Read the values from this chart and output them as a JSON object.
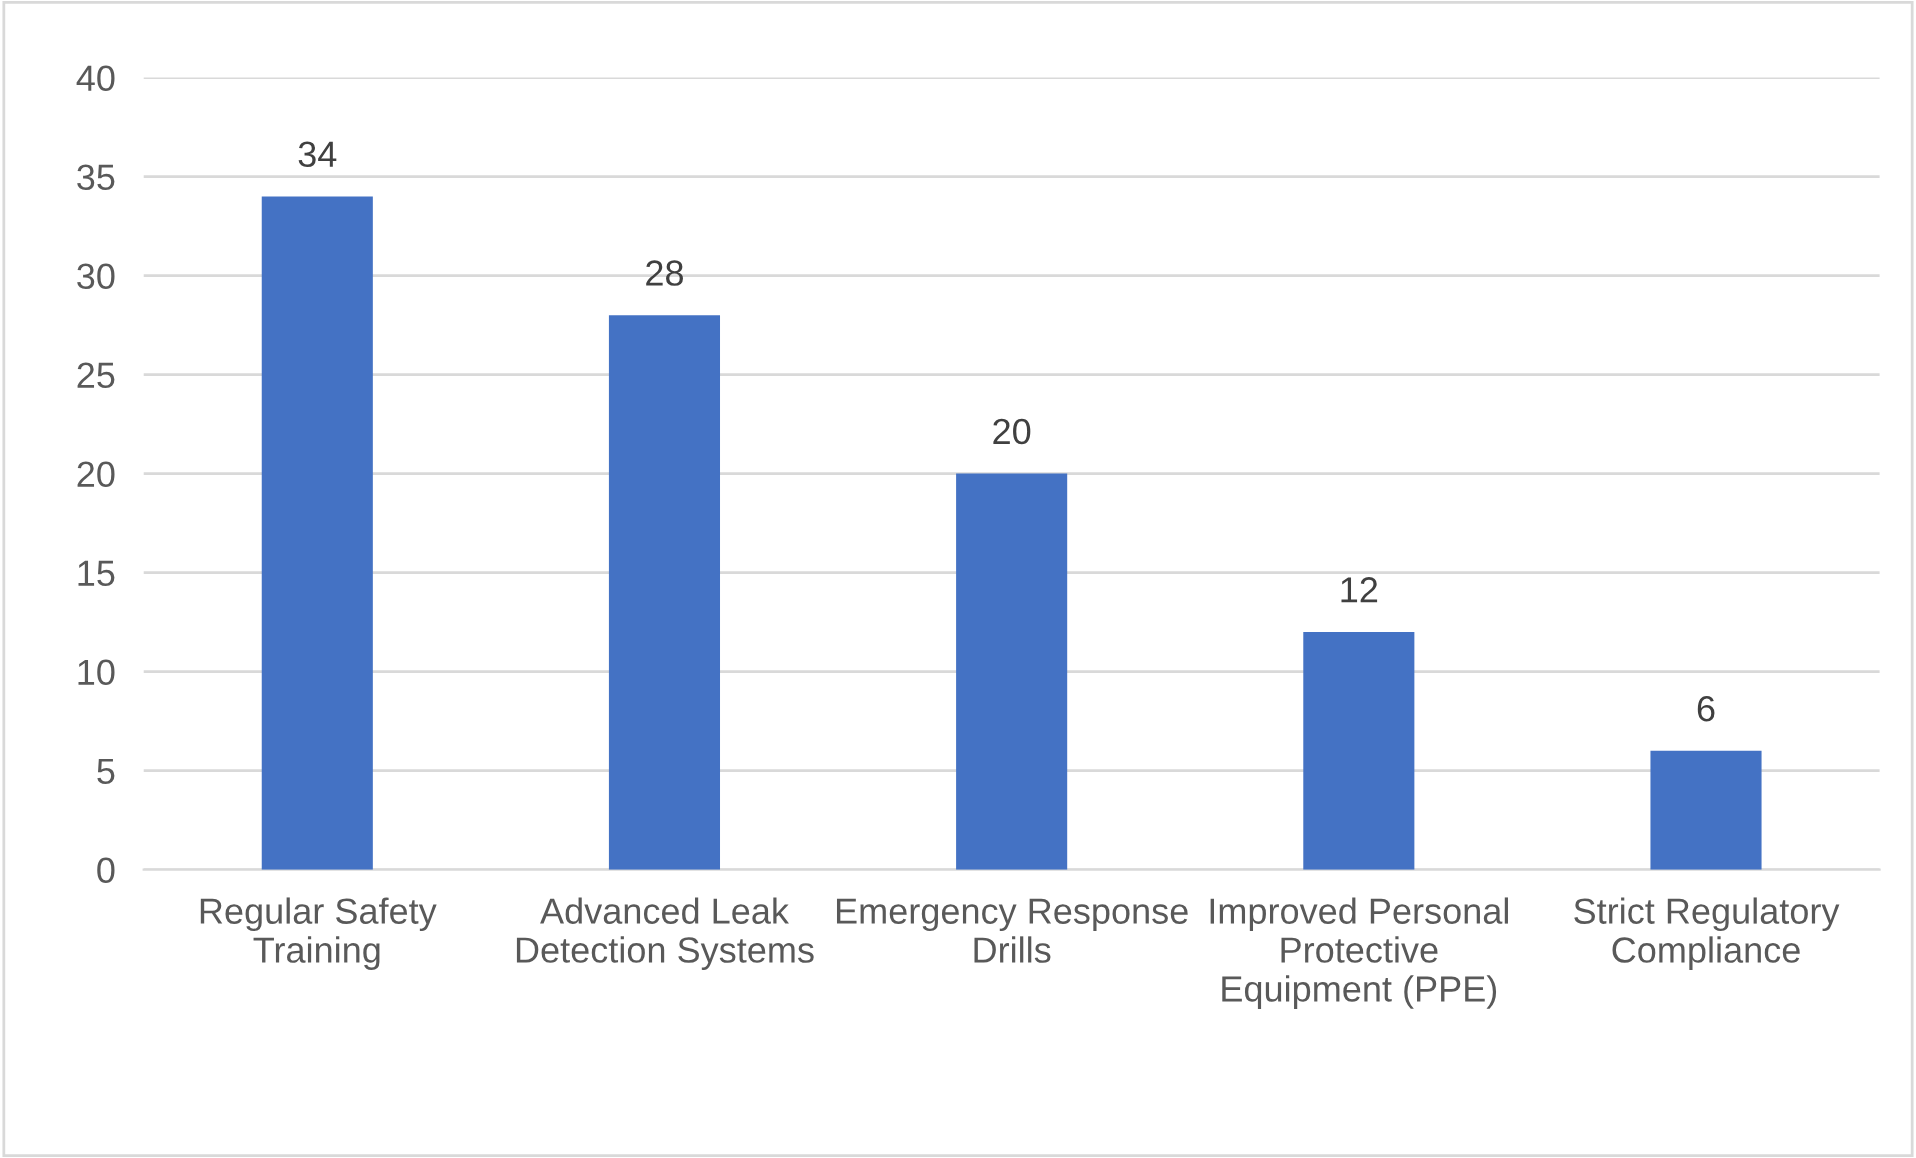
{
  "chart_data": {
    "type": "bar",
    "categories": [
      "Regular Safety Training",
      "Advanced Leak Detection Systems",
      "Emergency Response Drills",
      "Improved Personal Protective Equipment (PPE)",
      "Strict Regulatory Compliance"
    ],
    "values": [
      34,
      28,
      20,
      12,
      6
    ],
    "color": "#4472c4",
    "ylim": [
      0,
      40
    ],
    "yticks": [
      0,
      5,
      10,
      15,
      20,
      25,
      30,
      35,
      40
    ],
    "grid": "y",
    "data_labels": true,
    "legend": false
  }
}
